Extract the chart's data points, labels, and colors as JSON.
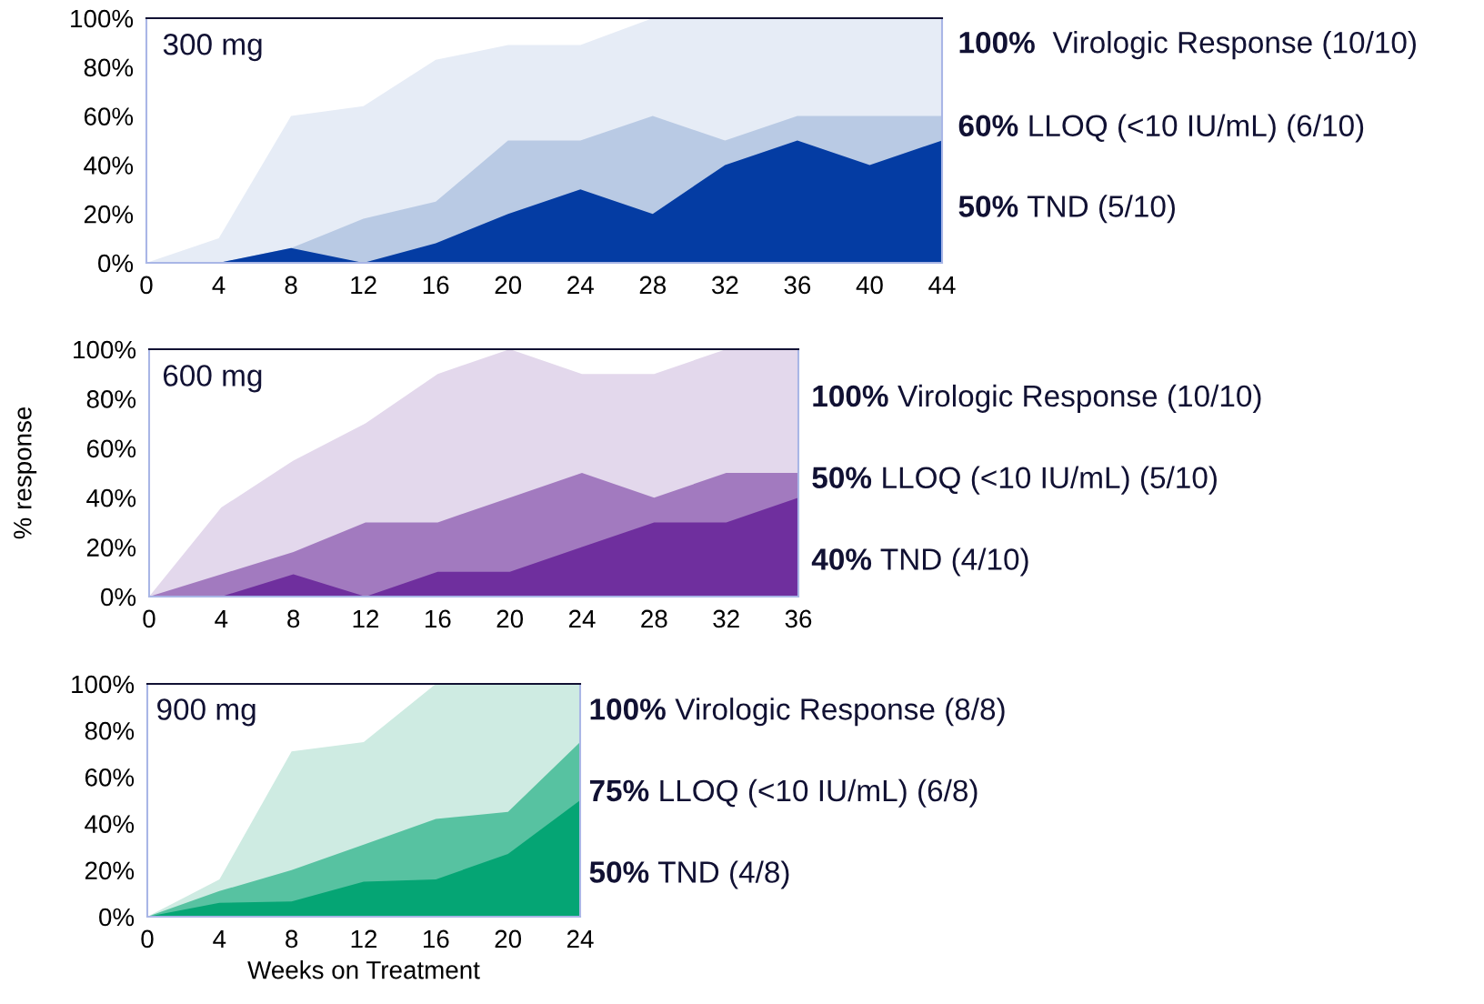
{
  "chart_data": [
    {
      "type": "area",
      "title": "300 mg",
      "x": [
        0,
        4,
        8,
        12,
        16,
        20,
        24,
        28,
        32,
        36,
        40,
        44
      ],
      "xlim": [
        0,
        44
      ],
      "xticks": [
        0,
        4,
        8,
        12,
        16,
        20,
        24,
        28,
        32,
        36,
        40,
        44
      ],
      "ylim": [
        0,
        100
      ],
      "yticks": [
        {
          "value": 0,
          "label": "0%"
        },
        {
          "value": 20,
          "label": "20%"
        },
        {
          "value": 40,
          "label": "40%"
        },
        {
          "value": 60,
          "label": "60%"
        },
        {
          "value": 80,
          "label": "80%"
        },
        {
          "value": 100,
          "label": "100%"
        }
      ],
      "grid": false,
      "legend": false,
      "series": [
        {
          "color": "#e6ecf6",
          "values": [
            0,
            10,
            60,
            64,
            83,
            89,
            89,
            100,
            100,
            100,
            100,
            100
          ]
        },
        {
          "color": "#b9cae4",
          "values": [
            0,
            0,
            6,
            18,
            25,
            50,
            50,
            60,
            50,
            60,
            60,
            60
          ]
        },
        {
          "color": "#043ca3",
          "values": [
            0,
            0,
            6,
            0,
            8,
            20,
            30,
            20,
            40,
            50,
            40,
            50
          ]
        }
      ],
      "annotations": [
        "100%  Virologic Response (10/10)",
        "60% LLOQ (<10 IU/mL) (6/10)",
        "50% TND (5/10)"
      ]
    },
    {
      "type": "area",
      "title": "600 mg",
      "ylabel": "% response",
      "x": [
        0,
        4,
        8,
        12,
        16,
        20,
        24,
        28,
        32,
        36
      ],
      "xlim": [
        0,
        36
      ],
      "xticks": [
        0,
        4,
        8,
        12,
        16,
        20,
        24,
        28,
        32,
        36
      ],
      "ylim": [
        0,
        100
      ],
      "yticks": [
        {
          "value": 0,
          "label": "0%"
        },
        {
          "value": 20,
          "label": "20%"
        },
        {
          "value": 40,
          "label": "40%"
        },
        {
          "value": 60,
          "label": "60%"
        },
        {
          "value": 80,
          "label": "80%"
        },
        {
          "value": 100,
          "label": "100%"
        }
      ],
      "grid": false,
      "legend": false,
      "series": [
        {
          "color": "#e3d8ec",
          "values": [
            0,
            36,
            55,
            70,
            90,
            100,
            90,
            90,
            100,
            100
          ]
        },
        {
          "color": "#a27abf",
          "values": [
            0,
            9,
            18,
            30,
            30,
            40,
            50,
            40,
            50,
            50
          ]
        },
        {
          "color": "#6f2f9e",
          "values": [
            0,
            0,
            9,
            0,
            10,
            10,
            20,
            30,
            30,
            40
          ]
        }
      ],
      "annotations": [
        "100% Virologic Response (10/10)",
        "50% LLOQ (<10 IU/mL) (5/10)",
        "40% TND (4/10)"
      ]
    },
    {
      "type": "area",
      "title": "900 mg",
      "xlabel": "Weeks on Treatment",
      "x": [
        0,
        4,
        8,
        12,
        16,
        20,
        24
      ],
      "xlim": [
        0,
        24
      ],
      "xticks": [
        0,
        4,
        8,
        12,
        16,
        20,
        24
      ],
      "ylim": [
        0,
        100
      ],
      "yticks": [
        {
          "value": 0,
          "label": "0%"
        },
        {
          "value": 20,
          "label": "20%"
        },
        {
          "value": 40,
          "label": "40%"
        },
        {
          "value": 60,
          "label": "60%"
        },
        {
          "value": 80,
          "label": "80%"
        },
        {
          "value": 100,
          "label": "100%"
        }
      ],
      "grid": false,
      "legend": false,
      "series": [
        {
          "color": "#ceebe2",
          "values": [
            0,
            16,
            71,
            75,
            100,
            100,
            100
          ]
        },
        {
          "color": "#57c2a1",
          "values": [
            0,
            11,
            20,
            31,
            42,
            45,
            75
          ]
        },
        {
          "color": "#05a574",
          "values": [
            0,
            6,
            6.5,
            15,
            16,
            27,
            50
          ]
        }
      ],
      "annotations": [
        "100% Virologic Response (8/8)",
        "75% LLOQ (<10 IU/mL) (6/8)",
        "50% TND (4/8)"
      ]
    }
  ]
}
